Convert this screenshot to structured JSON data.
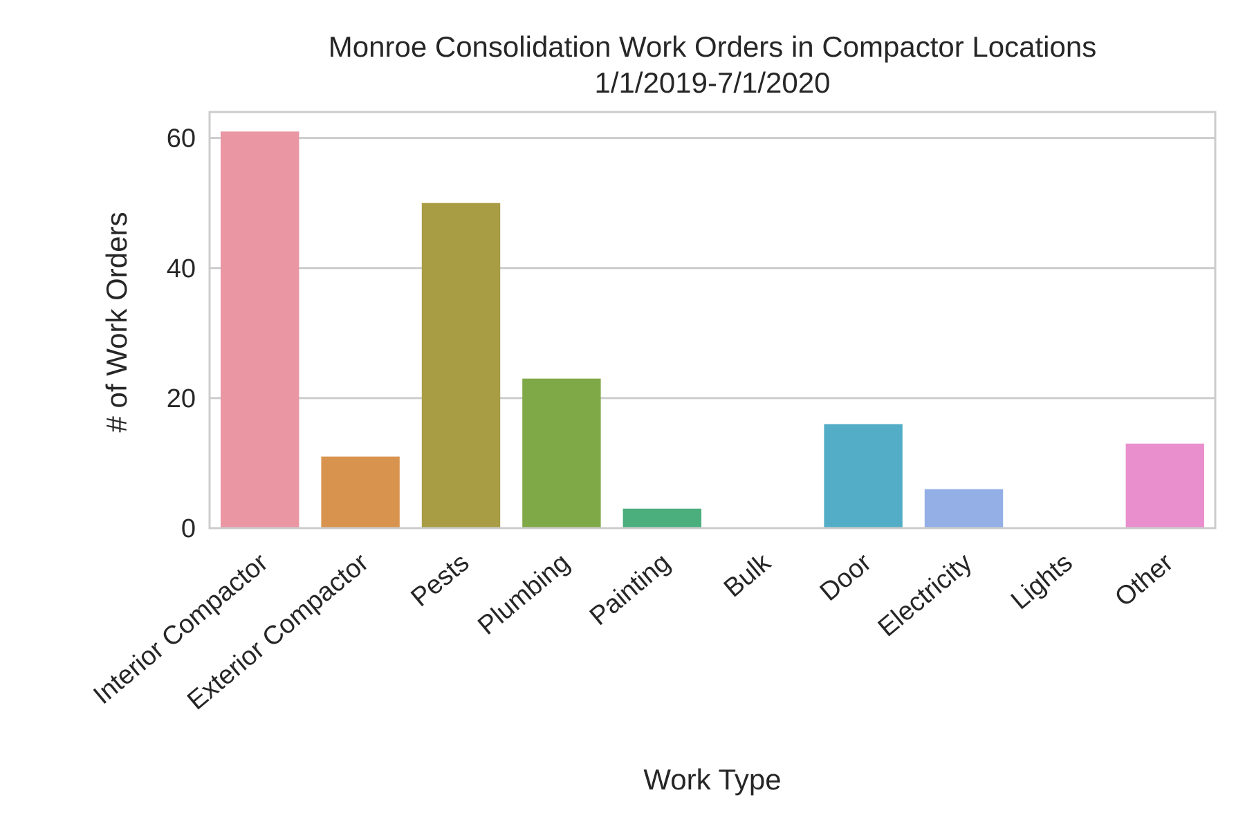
{
  "chart_data": {
    "type": "bar",
    "title": "Monroe Consolidation Work Orders in Compactor Locations",
    "subtitle": "1/1/2019-7/1/2020",
    "xlabel": "Work Type",
    "ylabel": "# of Work Orders",
    "categories": [
      "Interior Compactor",
      "Exterior Compactor",
      "Pests",
      "Plumbing",
      "Painting",
      "Bulk",
      "Door",
      "Electricity",
      "Lights",
      "Other"
    ],
    "values": [
      61,
      11,
      50,
      23,
      3,
      0,
      16,
      6,
      0,
      13
    ],
    "colors": [
      "#ea96a3",
      "#d8944f",
      "#a89c45",
      "#7fa847",
      "#4aae7d",
      "#4aaea2",
      "#53adc6",
      "#93afe6",
      "#c69ef1",
      "#ea8fcd"
    ],
    "ylim": [
      0,
      64
    ],
    "yticks": [
      0,
      20,
      40,
      60
    ],
    "grid": true,
    "legend": "none"
  }
}
